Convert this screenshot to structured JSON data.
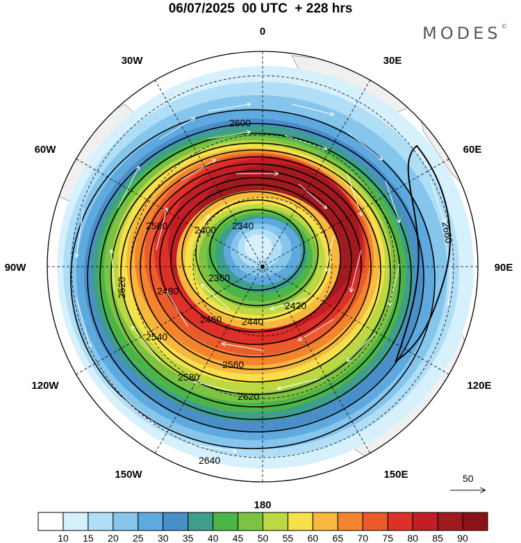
{
  "title": "06/07/2025  00 UTC  + 228 hrs",
  "logo": "MODES",
  "logo_mark": "©",
  "longitude_labels": [
    "0",
    "30E",
    "60E",
    "90E",
    "120E",
    "150E",
    "180",
    "150W",
    "120W",
    "90W",
    "60W",
    "30W"
  ],
  "contour_labels": [
    "2340",
    "2400",
    "2360",
    "2420",
    "2440",
    "2460",
    "2480",
    "2500",
    "2520",
    "2540",
    "2560",
    "2580",
    "2600",
    "2620",
    "2640",
    "2660"
  ],
  "vector_reference": {
    "value": "50"
  },
  "colorbar": {
    "labels": [
      "10",
      "15",
      "20",
      "25",
      "30",
      "35",
      "40",
      "45",
      "50",
      "55",
      "60",
      "65",
      "70",
      "75",
      "80",
      "85",
      "90"
    ],
    "colors": [
      "#ffffff",
      "#d6f0fc",
      "#b0def7",
      "#86c6ec",
      "#5ea9de",
      "#4a8fca",
      "#3f9e8c",
      "#4cb548",
      "#7dc243",
      "#bcd842",
      "#f6e04b",
      "#f8b73d",
      "#f4842e",
      "#ec5b2c",
      "#dc3028",
      "#c21e25",
      "#a11a20",
      "#8a1218"
    ]
  }
}
